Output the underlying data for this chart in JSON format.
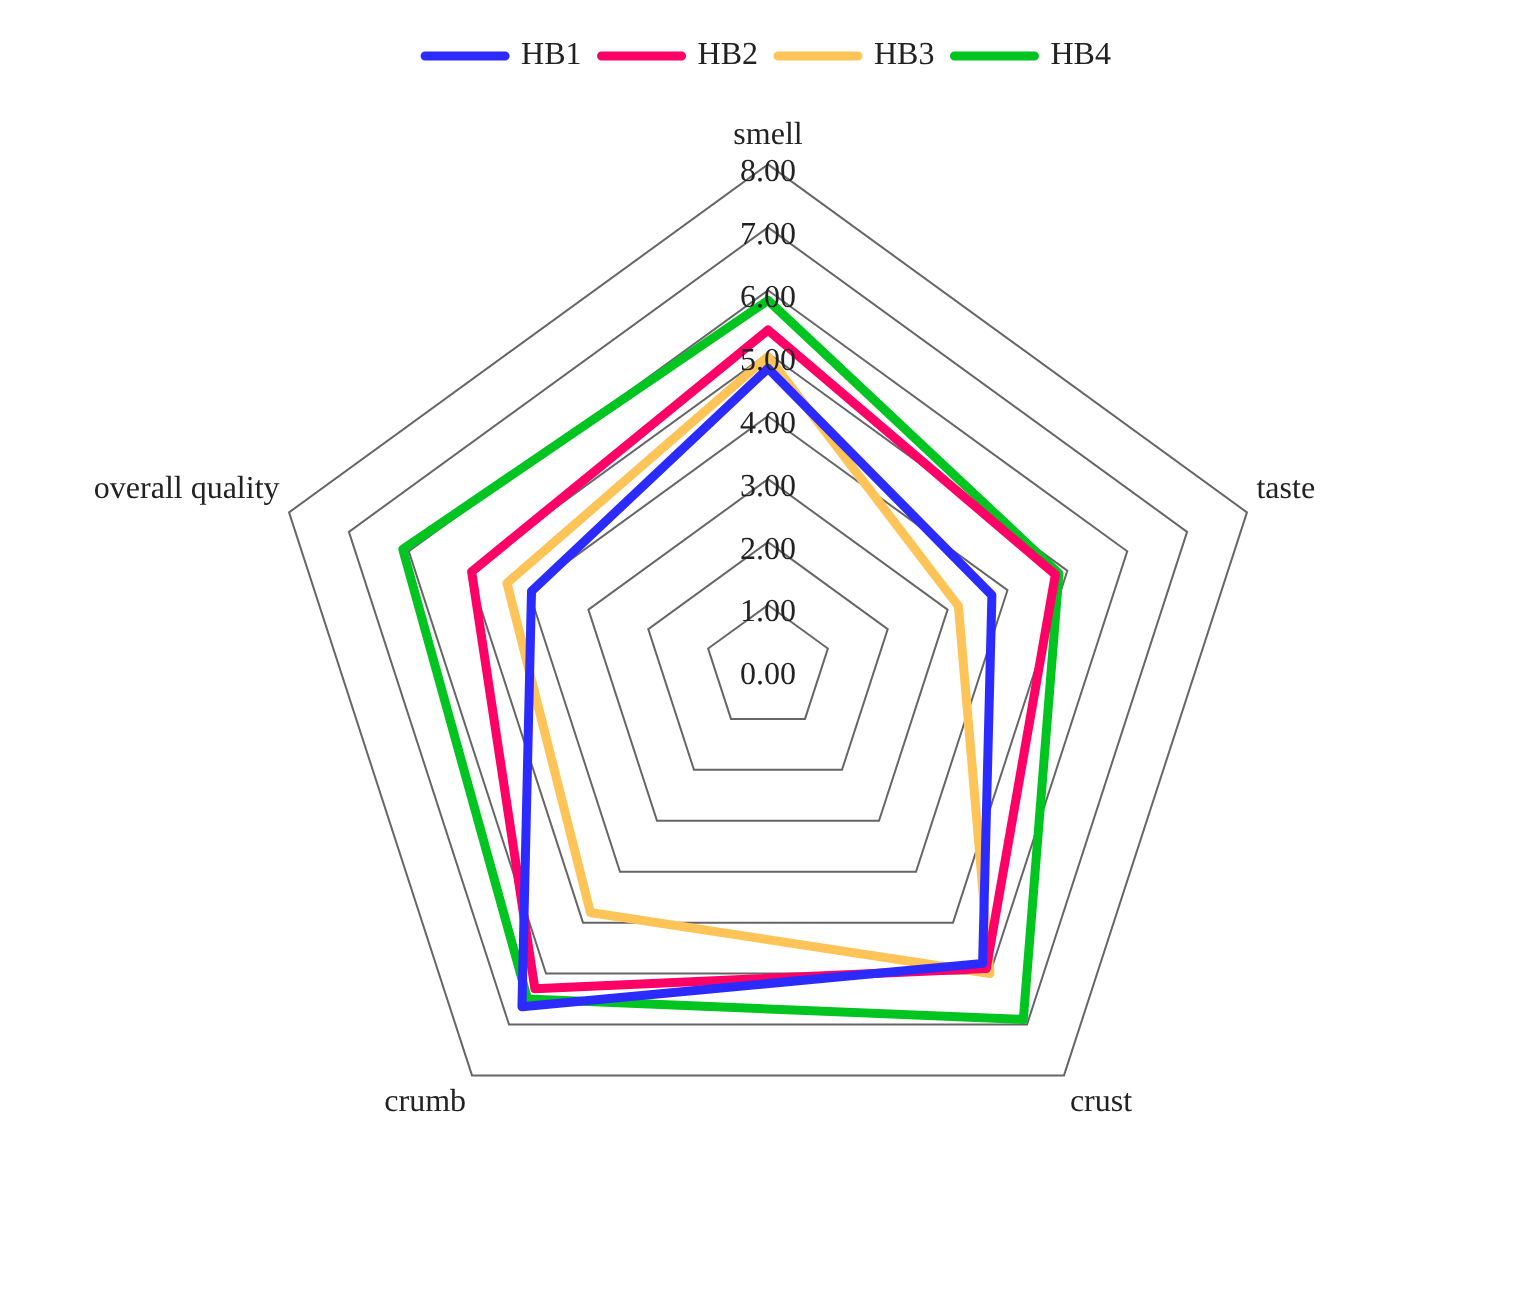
{
  "chart_data": {
    "type": "radar",
    "categories": [
      "smell",
      "taste",
      "crust",
      "crumb",
      "overall quality"
    ],
    "series": [
      {
        "name": "HB1",
        "color": "#2b2bff",
        "values": [
          4.76,
          3.74,
          5.8,
          6.65,
          3.95
        ]
      },
      {
        "name": "HB2",
        "color": "#ff0066",
        "values": [
          5.37,
          4.8,
          5.9,
          6.3,
          4.95
        ]
      },
      {
        "name": "HB3",
        "color": "#ffc457",
        "values": [
          4.95,
          3.18,
          6.0,
          4.8,
          4.36
        ]
      },
      {
        "name": "HB4",
        "color": "#00c41f",
        "values": [
          5.84,
          4.86,
          6.9,
          6.5,
          6.1
        ]
      }
    ],
    "ylim": [
      0,
      8
    ],
    "yticks": [
      {
        "value": 0,
        "label": "0.00"
      },
      {
        "value": 1,
        "label": "1.00"
      },
      {
        "value": 2,
        "label": "2.00"
      },
      {
        "value": 3,
        "label": "3.00"
      },
      {
        "value": 4,
        "label": "4.00"
      },
      {
        "value": 5,
        "label": "5.00"
      },
      {
        "value": 6,
        "label": "6.00"
      },
      {
        "value": 7,
        "label": "7.00"
      },
      {
        "value": 8,
        "label": "8.00"
      }
    ],
    "grid": true,
    "legend": "top",
    "marker": "none",
    "line_style": "solid"
  }
}
